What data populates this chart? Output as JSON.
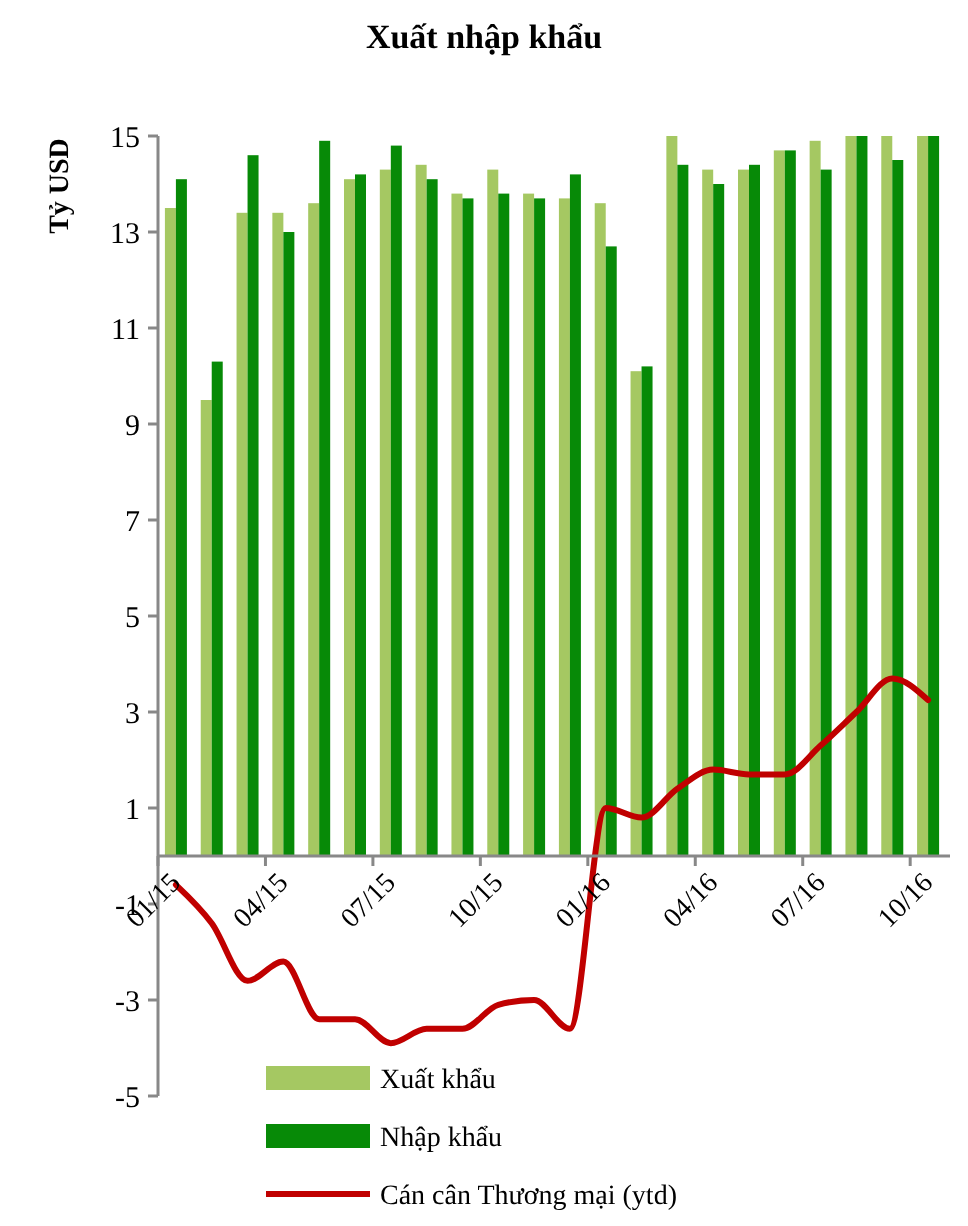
{
  "chart_data": {
    "type": "bar",
    "title": "Xuất nhập khẩu",
    "ylabel": "Tỷ USD",
    "categories": [
      "01/15",
      null,
      null,
      "04/15",
      null,
      null,
      "07/15",
      null,
      null,
      "10/15",
      null,
      null,
      "01/16",
      null,
      null,
      "04/16",
      null,
      null,
      "07/16",
      null,
      null,
      "10/16"
    ],
    "series": [
      {
        "name": "Xuất khẩu",
        "color": "#a5c862",
        "values": [
          13.5,
          9.5,
          13.4,
          13.4,
          13.6,
          14.1,
          14.3,
          14.4,
          13.8,
          14.3,
          13.8,
          13.7,
          13.6,
          10.1,
          15,
          14.3,
          14.3,
          14.7,
          14.9,
          15,
          15,
          15
        ]
      },
      {
        "name": "Nhập khẩu",
        "color": "#078a07",
        "values": [
          14.1,
          10.3,
          14.6,
          13.0,
          14.9,
          14.2,
          14.8,
          14.1,
          13.7,
          13.8,
          13.7,
          14.2,
          12.7,
          10.2,
          14.4,
          14.0,
          14.4,
          14.7,
          14.3,
          15,
          14.5,
          15
        ]
      },
      {
        "name": "Cán cân Thương mại (ytd)",
        "type": "line",
        "color": "#c00000",
        "values": [
          -0.6,
          -1.4,
          -2.6,
          -2.2,
          -3.4,
          -3.4,
          -3.9,
          -3.6,
          -3.6,
          -3.1,
          -3.0,
          -3.6,
          1.0,
          0.8,
          1.4,
          1.8,
          1.7,
          1.7,
          2.3,
          3.0,
          3.7,
          3.25
        ]
      }
    ],
    "ylim": [
      -5,
      15
    ],
    "yticks": [
      -5,
      -3,
      -1,
      1,
      3,
      5,
      7,
      9,
      11,
      13,
      15
    ],
    "grid": false,
    "legend": "bottom left",
    "marker": "none",
    "line_style": "solid"
  }
}
